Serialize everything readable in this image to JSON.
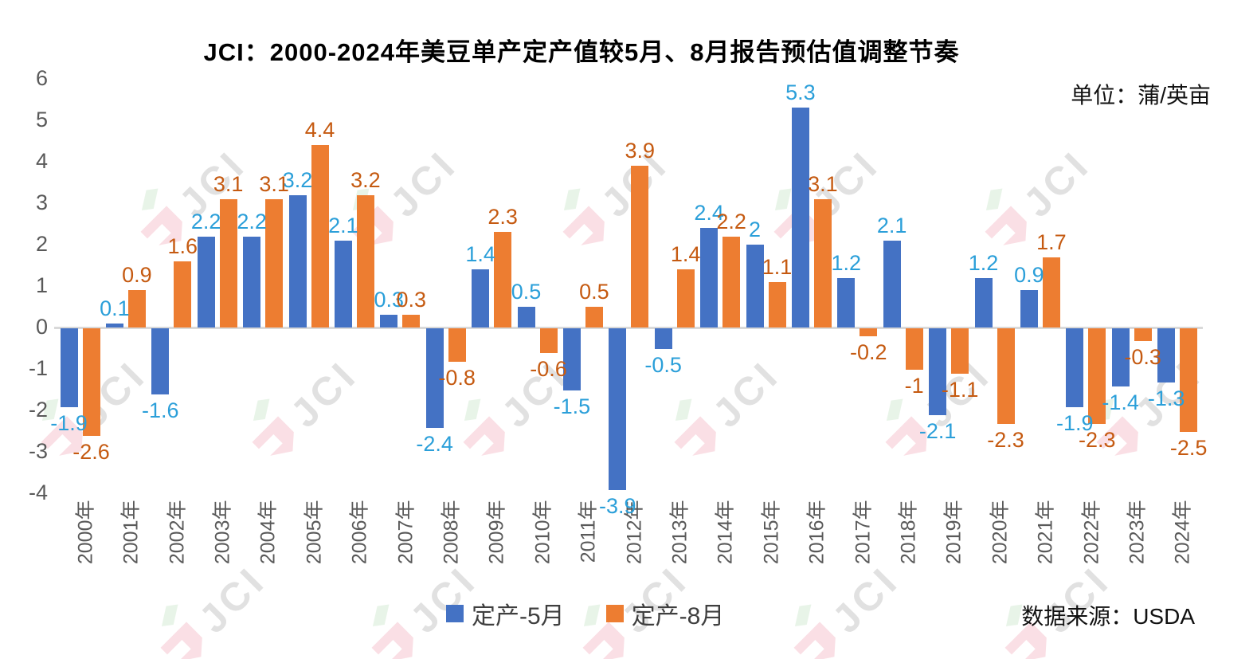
{
  "title": "JCI：2000-2024年美豆单产定产值较5月、8月报告预估值调整节奏",
  "unit_label": "单位：蒲/英亩",
  "source_label": "数据来源：USDA",
  "watermark": {
    "text": "JCI"
  },
  "colors": {
    "series1_bar": "#4472C4",
    "series1_label": "#2B9FD9",
    "series2_bar": "#ED7D31",
    "series2_label": "#C55A11",
    "axis_text": "#595959",
    "zero_line": "#D9D9D9",
    "title_text": "#000000"
  },
  "chart_data": {
    "type": "bar",
    "title": "JCI：2000-2024年美豆单产定产值较5月、8月报告预估值调整节奏",
    "unit": "蒲/英亩",
    "source": "USDA",
    "categories": [
      "2000年",
      "2001年",
      "2002年",
      "2003年",
      "2004年",
      "2005年",
      "2006年",
      "2007年",
      "2008年",
      "2009年",
      "2010年",
      "2011年",
      "2012年",
      "2013年",
      "2014年",
      "2015年",
      "2016年",
      "2017年",
      "2018年",
      "2019年",
      "2020年",
      "2021年",
      "2022年",
      "2023年",
      "2024年"
    ],
    "series": [
      {
        "name": "定产-5月",
        "color": "#4472C4",
        "label_color": "#2B9FD9",
        "values": [
          -1.9,
          0.1,
          -1.6,
          2.2,
          2.2,
          3.2,
          2.1,
          0.3,
          -2.4,
          1.4,
          0.5,
          -1.5,
          -3.9,
          -0.5,
          2.4,
          2,
          5.3,
          1.2,
          2.1,
          -2.1,
          1.2,
          0.9,
          -1.9,
          -1.4,
          -1.3
        ]
      },
      {
        "name": "定产-8月",
        "color": "#ED7D31",
        "label_color": "#C55A11",
        "values": [
          -2.6,
          0.9,
          1.6,
          3.1,
          3.1,
          4.4,
          3.2,
          0.3,
          -0.8,
          2.3,
          -0.6,
          0.5,
          3.9,
          1.4,
          2.2,
          1.1,
          3.1,
          -0.2,
          -1,
          -1.1,
          -2.3,
          1.7,
          -2.3,
          -0.3,
          -2.5
        ]
      }
    ],
    "ylim": [
      -4,
      6
    ],
    "yticks": [
      6,
      5,
      4,
      3,
      2,
      1,
      0,
      -1,
      -2,
      -3,
      -4
    ],
    "grid": "zero-line-only",
    "data_labels": "outside-end",
    "legend_position": "bottom-center"
  }
}
